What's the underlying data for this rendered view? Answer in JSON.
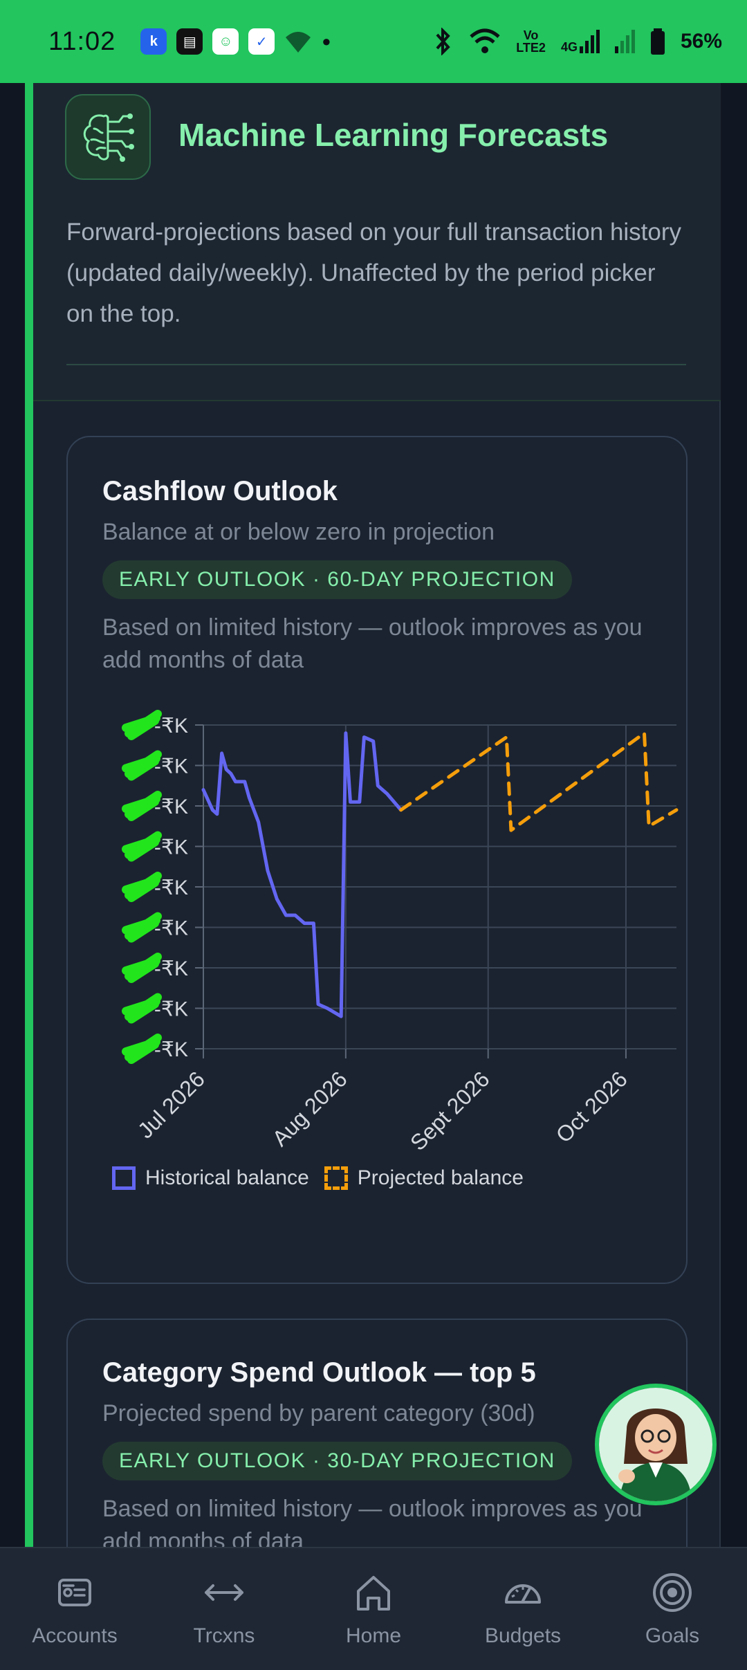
{
  "status_bar": {
    "time": "11:02",
    "network_top": "Vo",
    "network_bottom": "LTE2",
    "net_4g": "4G",
    "battery": "56%"
  },
  "ml_section": {
    "icon": "brain-circuit-icon",
    "title": "Machine Learning Forecasts",
    "description": "Forward-projections based on your full transaction history (updated daily/weekly). Unaffected by the period picker on the top."
  },
  "cashflow_card": {
    "title": "Cashflow Outlook",
    "subtitle": "Balance at or below zero in projection",
    "badge": "EARLY OUTLOOK · 60-DAY PROJECTION",
    "note": "Based on limited history — outlook improves as you add months of data",
    "legend_historical": "Historical balance",
    "legend_projected": "Projected balance"
  },
  "chart_data": {
    "type": "line",
    "title": "Cashflow Outlook",
    "y_tick_labels_redacted": true,
    "y_tick_count": 9,
    "y_tick_labels": [
      "-₹K",
      "-₹K",
      "-₹K",
      "-₹K",
      "-₹K",
      "-₹K",
      "-₹K",
      "-₹K",
      "-₹K"
    ],
    "ylim": [
      0,
      8
    ],
    "x_tick_labels": [
      "Jul 2026",
      "Aug 2026",
      "Sept 2026",
      "Oct 2026"
    ],
    "x_ticks_day": [
      0,
      31,
      62,
      92
    ],
    "xlim_days": [
      0,
      103
    ],
    "grid": true,
    "series": [
      {
        "name": "Historical balance",
        "color": "#6366f1",
        "style": "solid",
        "points": [
          [
            0,
            6.4
          ],
          [
            2,
            5.9
          ],
          [
            3,
            5.8
          ],
          [
            4,
            7.3
          ],
          [
            5,
            6.9
          ],
          [
            6,
            6.8
          ],
          [
            7,
            6.6
          ],
          [
            9,
            6.6
          ],
          [
            10,
            6.2
          ],
          [
            12,
            5.6
          ],
          [
            14,
            4.4
          ],
          [
            16,
            3.7
          ],
          [
            18,
            3.3
          ],
          [
            20,
            3.3
          ],
          [
            22,
            3.1
          ],
          [
            24,
            3.1
          ],
          [
            25,
            1.1
          ],
          [
            27,
            1.0
          ],
          [
            30,
            0.8
          ],
          [
            31,
            7.8
          ],
          [
            32,
            6.1
          ],
          [
            34,
            6.1
          ],
          [
            35,
            7.7
          ],
          [
            37,
            7.6
          ],
          [
            38,
            6.5
          ],
          [
            40,
            6.3
          ],
          [
            43,
            5.9
          ]
        ]
      },
      {
        "name": "Projected balance",
        "color": "#f59e0b",
        "style": "dashed",
        "points": [
          [
            43,
            5.9
          ],
          [
            66,
            7.7
          ],
          [
            67,
            5.4
          ],
          [
            96,
            7.8
          ],
          [
            97,
            5.5
          ],
          [
            103,
            5.9
          ]
        ]
      }
    ]
  },
  "category_card": {
    "title": "Category Spend Outlook — top 5",
    "subtitle": "Projected spend by parent category (30d)",
    "badge": "EARLY OUTLOOK · 30-DAY PROJECTION",
    "note": "Based on limited history — outlook improves as you add months of data"
  },
  "avatar": {
    "icon": "assistant-avatar-icon"
  },
  "bottom_nav": {
    "items": [
      {
        "label": "Accounts",
        "icon": "accounts-card-icon"
      },
      {
        "label": "Trcxns",
        "icon": "arrows-left-right-icon"
      },
      {
        "label": "Home",
        "icon": "home-icon"
      },
      {
        "label": "Budgets",
        "icon": "gauge-icon"
      },
      {
        "label": "Goals",
        "icon": "target-icon"
      }
    ]
  }
}
